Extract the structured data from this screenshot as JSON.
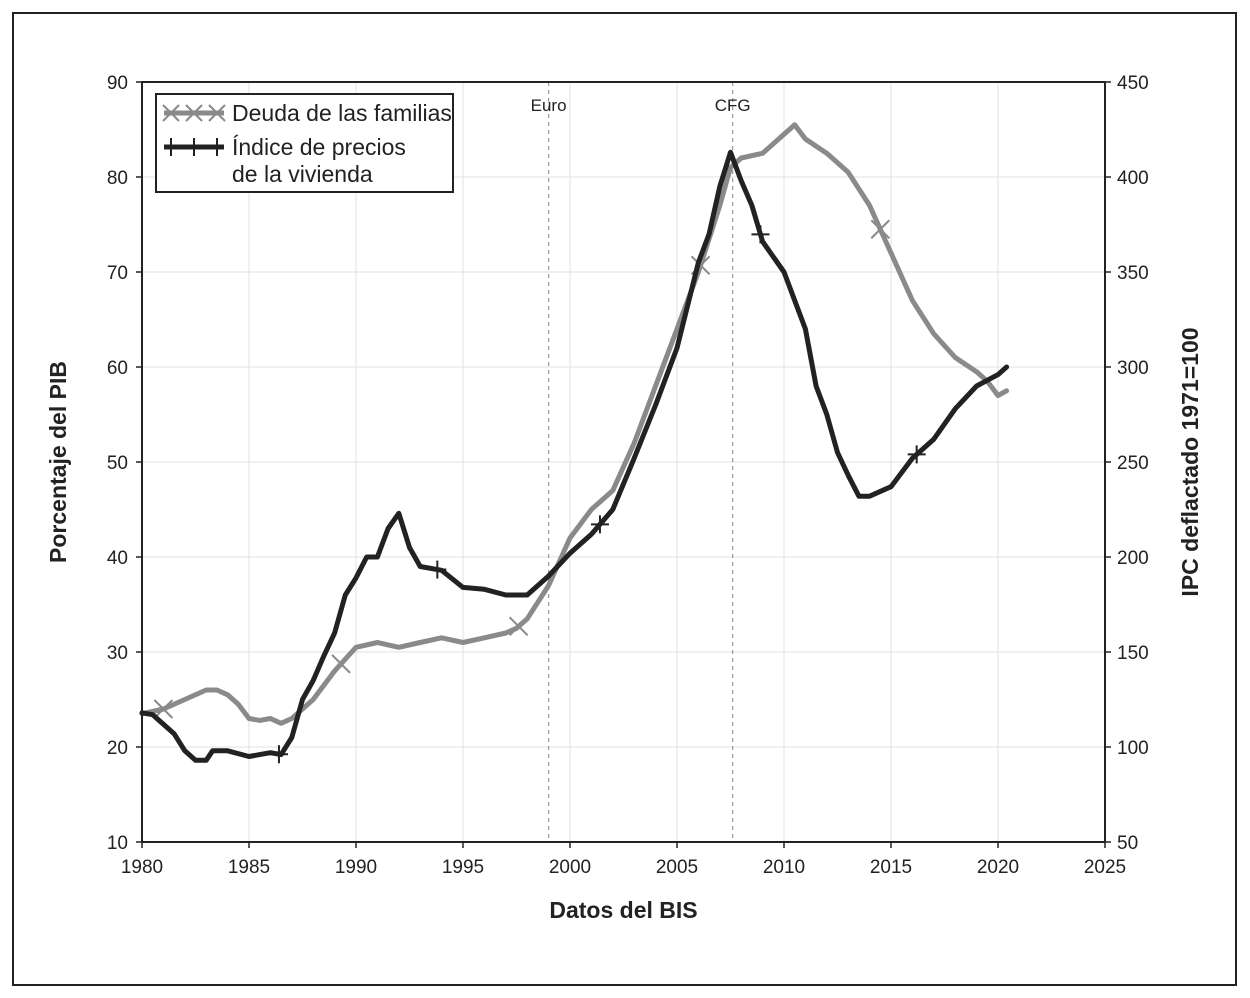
{
  "chart_data": {
    "type": "line",
    "xlabel": "Datos del BIS",
    "ylabel": "Porcentaje del PIB",
    "y2label": "IPC deflactado 1971=100",
    "xlim": [
      1980,
      2025
    ],
    "ylim": [
      10,
      90
    ],
    "y2lim": [
      50,
      450
    ],
    "xticks": [
      1980,
      1985,
      1990,
      1995,
      2000,
      2005,
      2010,
      2015,
      2020,
      2025
    ],
    "yticks": [
      10,
      20,
      30,
      40,
      50,
      60,
      70,
      80,
      90
    ],
    "y2ticks": [
      50,
      100,
      150,
      200,
      250,
      300,
      350,
      400,
      450
    ],
    "grid": true,
    "legend_position": "top-left",
    "annotations": [
      {
        "label": "Euro",
        "x": 1999.0
      },
      {
        "label": "CFG",
        "x": 2007.6
      }
    ],
    "series": [
      {
        "name": "Deuda de las familias",
        "axis": "left",
        "color": "#8a8a8a",
        "marker": "x",
        "marker_x": [
          1981,
          1989.3,
          1997.6,
          2006.1,
          2014.5
        ],
        "x": [
          1980,
          1981,
          1982,
          1983,
          1983.5,
          1984,
          1984.5,
          1985,
          1985.5,
          1986,
          1986.5,
          1987,
          1988,
          1989,
          1990,
          1991,
          1992,
          1993,
          1994,
          1995,
          1996,
          1997,
          1997.5,
          1998,
          1999,
          2000,
          2001,
          2002,
          2003,
          2004,
          2005,
          2006,
          2007,
          2007.5,
          2008,
          2009,
          2010,
          2010.5,
          2011,
          2012,
          2013,
          2014,
          2015,
          2016,
          2017,
          2018,
          2019,
          2019.5,
          2020,
          2020.4
        ],
        "values": [
          23.5,
          24,
          25,
          26,
          26,
          25.5,
          24.5,
          23,
          22.8,
          23,
          22.5,
          23,
          25,
          28,
          30.5,
          31,
          30.5,
          31,
          31.5,
          31,
          31.5,
          32,
          32.5,
          33.5,
          37,
          42,
          45,
          47,
          52,
          58,
          64,
          70,
          77,
          81,
          82,
          82.5,
          84.5,
          85.5,
          84,
          82.5,
          80.5,
          77,
          72,
          67,
          63.5,
          61,
          59.5,
          58.5,
          57,
          57.5
        ]
      },
      {
        "name": "Índice de precios de la vivienda",
        "axis": "right",
        "color": "#222222",
        "marker": "+",
        "marker_x": [
          1986.4,
          1993.8,
          2001.4,
          2008.9,
          2016.2
        ],
        "x": [
          1980,
          1980.5,
          1981,
          1981.5,
          1982,
          1982.5,
          1983,
          1983.3,
          1984,
          1985,
          1985.5,
          1986,
          1986.5,
          1987,
          1987.5,
          1988,
          1988.5,
          1989,
          1989.5,
          1990,
          1990.5,
          1991,
          1991.5,
          1992,
          1992.5,
          1993,
          1994,
          1995,
          1996,
          1997,
          1998,
          1999,
          2000,
          2001,
          2002,
          2003,
          2004,
          2005,
          2006,
          2006.5,
          2007,
          2007.5,
          2008,
          2008.5,
          2009,
          2010,
          2011,
          2011.5,
          2012,
          2012.5,
          2013,
          2013.5,
          2014,
          2015,
          2016,
          2017,
          2018,
          2019,
          2020,
          2020.4
        ],
        "values": [
          118,
          117,
          112,
          107,
          98,
          93,
          93,
          98,
          98,
          95,
          96,
          97,
          96,
          105,
          125,
          135,
          148,
          160,
          180,
          189,
          200,
          200,
          215,
          223,
          205,
          195,
          193,
          184,
          183,
          180,
          180,
          190,
          202,
          212,
          225,
          252,
          280,
          310,
          355,
          370,
          395,
          413,
          398,
          385,
          366,
          350,
          320,
          290,
          275,
          255,
          243,
          232,
          232,
          237,
          252,
          262,
          278,
          290,
          296,
          300
        ]
      }
    ]
  }
}
